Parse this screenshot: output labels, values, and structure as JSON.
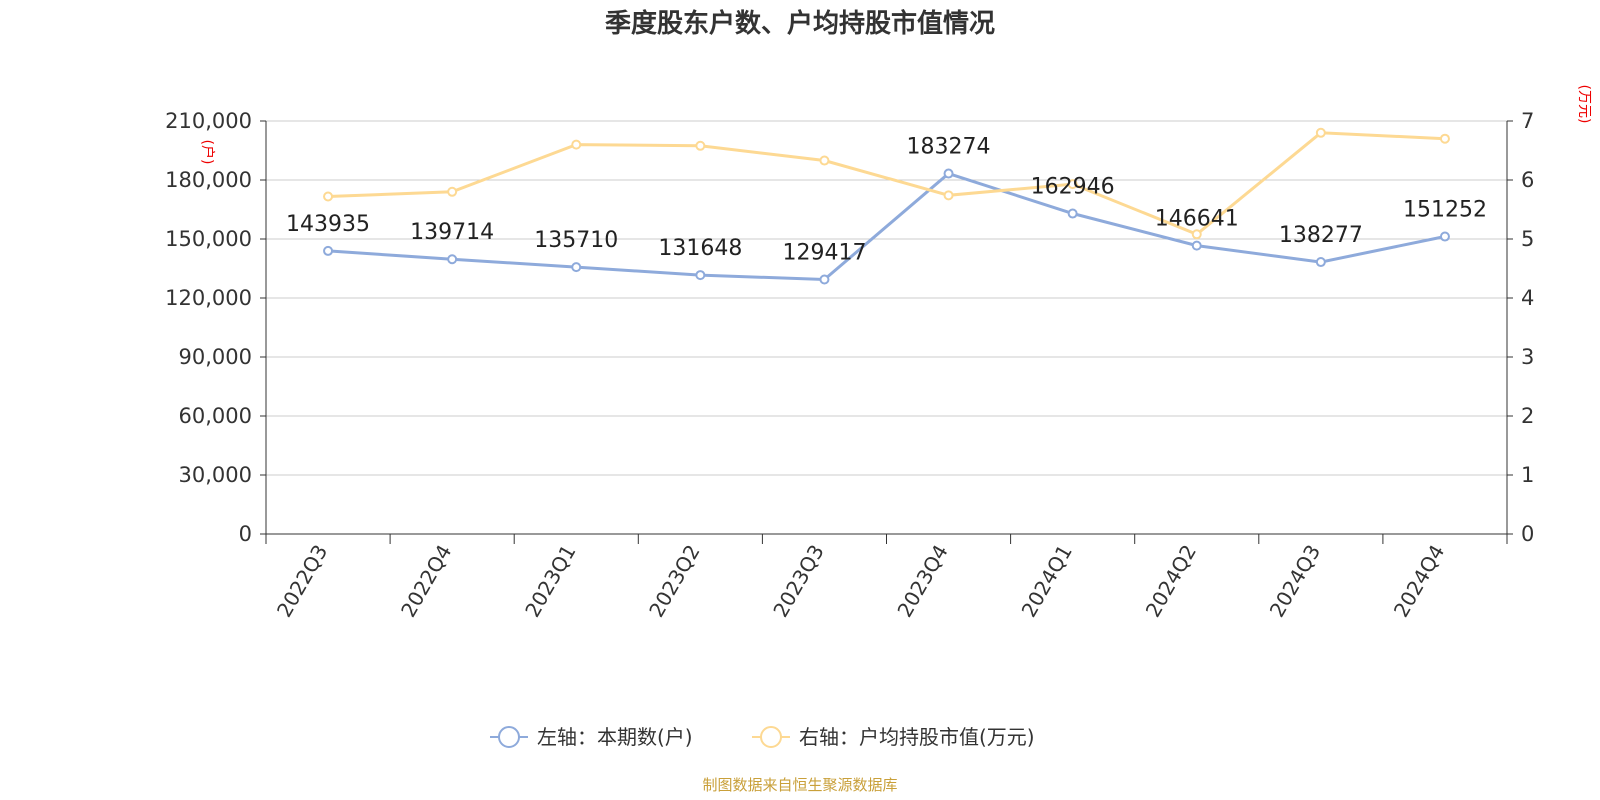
{
  "chart_data": {
    "type": "line",
    "title": "季度股东户数、户均持股市值情况",
    "categories": [
      "2022Q3",
      "2022Q4",
      "2023Q1",
      "2023Q2",
      "2023Q3",
      "2023Q4",
      "2024Q1",
      "2024Q2",
      "2024Q3",
      "2024Q4"
    ],
    "series": [
      {
        "name": "左轴：本期数(户)",
        "axis": "left",
        "color": "#8eaadb",
        "values": [
          143935,
          139714,
          135710,
          131648,
          129417,
          183274,
          162946,
          146641,
          138277,
          151252
        ],
        "labels": [
          "143935",
          "139714",
          "135710",
          "131648",
          "129417",
          "183274",
          "162946",
          "146641",
          "138277",
          "151252"
        ]
      },
      {
        "name": "右轴：户均持股市值(万元)",
        "axis": "right",
        "color": "#fdd993",
        "values": [
          5.72,
          5.8,
          6.6,
          6.58,
          6.33,
          5.74,
          5.93,
          5.08,
          6.8,
          6.7
        ]
      }
    ],
    "y_left": {
      "unit": "(户)",
      "ylim": [
        0,
        210000
      ],
      "ticks": [
        "0",
        "30,000",
        "60,000",
        "90,000",
        "120,000",
        "150,000",
        "180,000",
        "210,000"
      ]
    },
    "y_right": {
      "unit": "(万元)",
      "ylim": [
        0,
        7
      ],
      "ticks": [
        "0",
        "1",
        "2",
        "3",
        "4",
        "5",
        "6",
        "7"
      ]
    },
    "grid": true,
    "legend_position": "bottom"
  },
  "source": "制图数据来自恒生聚源数据库"
}
